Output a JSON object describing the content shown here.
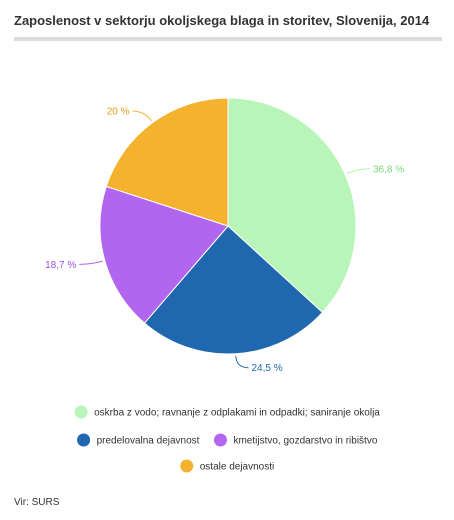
{
  "chart_data": {
    "type": "pie",
    "title": "Zaposlenost v sektorju okoljskega blaga in storitev, Slovenija, 2014",
    "slices": [
      {
        "label": "oskrba z vodo; ravnanje z odplakami in odpadki; saniranje okolja",
        "value": 36.8,
        "value_label": "36,8 %",
        "color": "#b8f5b8",
        "label_color": "#7bd67b"
      },
      {
        "label": "predelovalna dejavnost",
        "value": 24.5,
        "value_label": "24,5 %",
        "color": "#1f68b0",
        "label_color": "#1f68b0"
      },
      {
        "label": "kmetijstvo, gozdarstvo in ribištvo",
        "value": 18.7,
        "value_label": "18,7 %",
        "color": "#b266f0",
        "label_color": "#9b4fe0"
      },
      {
        "label": "ostale dejavnosti",
        "value": 20,
        "value_label": "20 %",
        "color": "#f5b22f",
        "label_color": "#e59c1a"
      }
    ],
    "legend_position": "bottom"
  },
  "source": "Vir: SURS"
}
